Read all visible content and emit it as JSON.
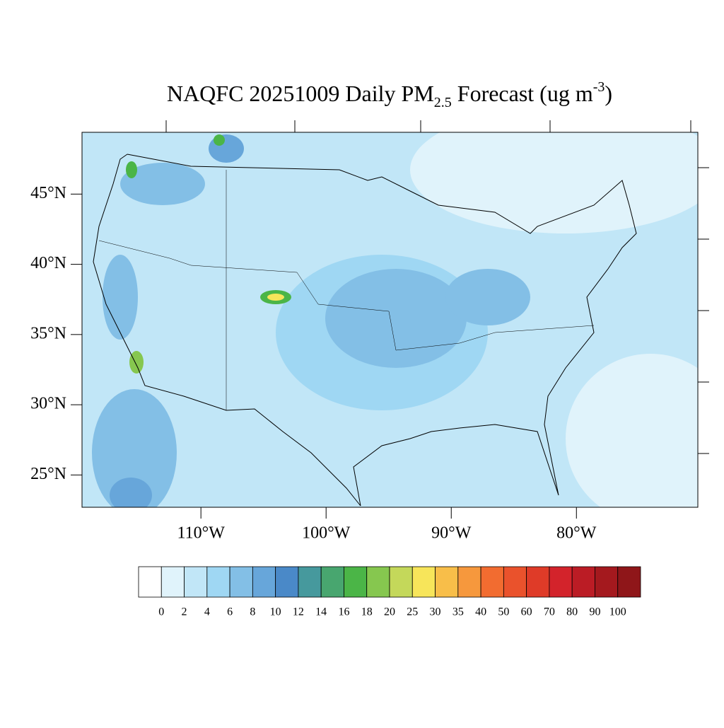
{
  "title": {
    "main": "NAQFC 20251009 Daily PM",
    "sub": "2.5",
    "mid": " Forecast (ug m",
    "sup": "-3",
    "end": ")"
  },
  "map": {
    "latlim": [
      22.7,
      49.4
    ],
    "lonlim": [
      -119.5,
      -70.3
    ],
    "lat_ticks": [
      {
        "value": 45,
        "label": "45°N"
      },
      {
        "value": 40,
        "label": "40°N"
      },
      {
        "value": 35,
        "label": "35°N"
      },
      {
        "value": 30,
        "label": "30°N"
      },
      {
        "value": 25,
        "label": "25°N"
      }
    ],
    "lon_ticks": [
      {
        "value": -110,
        "label": "110°W"
      },
      {
        "value": -100,
        "label": "100°W"
      },
      {
        "value": -90,
        "label": "90°W"
      },
      {
        "value": -80,
        "label": "80°W"
      }
    ]
  },
  "colorbar": {
    "levels": [
      0,
      2,
      4,
      6,
      8,
      10,
      12,
      14,
      16,
      18,
      20,
      25,
      30,
      35,
      40,
      50,
      60,
      70,
      80,
      90,
      100
    ],
    "colors": [
      "#ffffff",
      "#e0f3fb",
      "#c1e6f7",
      "#9fd7f3",
      "#83bfe6",
      "#67a6da",
      "#4a89c8",
      "#46999d",
      "#48a66f",
      "#4bb547",
      "#86c74f",
      "#c4d85a",
      "#f7e55a",
      "#f8be49",
      "#f6983d",
      "#f26c30",
      "#ea522c",
      "#df3b28",
      "#d3232b",
      "#bb1c25",
      "#a4191e",
      "#8f1619"
    ]
  }
}
